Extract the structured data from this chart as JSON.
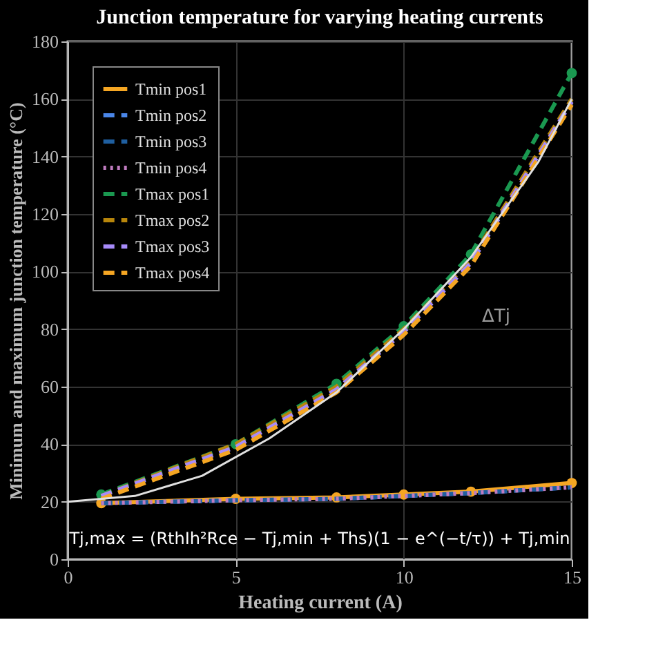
{
  "chart_data": {
    "type": "line",
    "title": "Junction temperature for varying heating currents",
    "xlabel": "Heating current (A)",
    "ylabel": "Minimum and maximum junction temperature (°C)",
    "x": [
      1,
      5,
      8,
      10,
      12,
      15
    ],
    "series": [
      {
        "name": "Tmin pos1",
        "color": "#f5a623",
        "line_style": "solid",
        "marker": "circle",
        "values": [
          19.5,
          21,
          21.5,
          22.5,
          23.5,
          26.5
        ]
      },
      {
        "name": "Tmin pos2",
        "color": "#4a86e8",
        "line_style": "dashed",
        "values": [
          19.5,
          20.5,
          21,
          22,
          23,
          25
        ]
      },
      {
        "name": "Tmin pos3",
        "color": "#1f5fa0",
        "line_style": "dashed",
        "values": [
          19.5,
          20.5,
          21,
          22,
          23,
          25
        ]
      },
      {
        "name": "Tmin pos4",
        "color": "#c07cc0",
        "line_style": "dotted",
        "values": [
          19.5,
          20.5,
          21,
          22,
          23,
          25
        ]
      },
      {
        "name": "Tmax pos1",
        "color": "#1a9850",
        "line_style": "dashed",
        "marker": "circle",
        "values": [
          22.5,
          40,
          61,
          81,
          106,
          169
        ]
      },
      {
        "name": "Tmax pos2",
        "color": "#b8860b",
        "line_style": "dashed",
        "values": [
          22,
          40,
          60,
          80,
          104,
          160
        ]
      },
      {
        "name": "Tmax pos3",
        "color": "#a78bfa",
        "line_style": "dashed",
        "values": [
          22,
          39,
          59,
          79,
          103,
          159
        ]
      },
      {
        "name": "Tmax pos4",
        "color": "#f5a623",
        "line_style": "dashed",
        "values": [
          21,
          38,
          58,
          78,
          102,
          158
        ]
      },
      {
        "color": "#e0e0e0",
        "line_style": "solid",
        "x": [
          0,
          2,
          4,
          6,
          8,
          10,
          12,
          14,
          15
        ],
        "values": [
          20,
          22,
          29,
          42,
          58,
          80,
          105,
          138,
          160
        ]
      }
    ],
    "xlim": [
      0,
      15
    ],
    "xticks": [
      0,
      5,
      10,
      15
    ],
    "ylim": [
      0,
      180
    ],
    "yticks": [
      0,
      20,
      40,
      60,
      80,
      100,
      120,
      140,
      160,
      180
    ],
    "grid": true,
    "legend": "top left",
    "annotations": [
      "Tj,max = (RthIh²Rce − Tj,min + Ths)(1 − e^(−t/τ)) + Tj,min",
      "ΔTj"
    ]
  }
}
